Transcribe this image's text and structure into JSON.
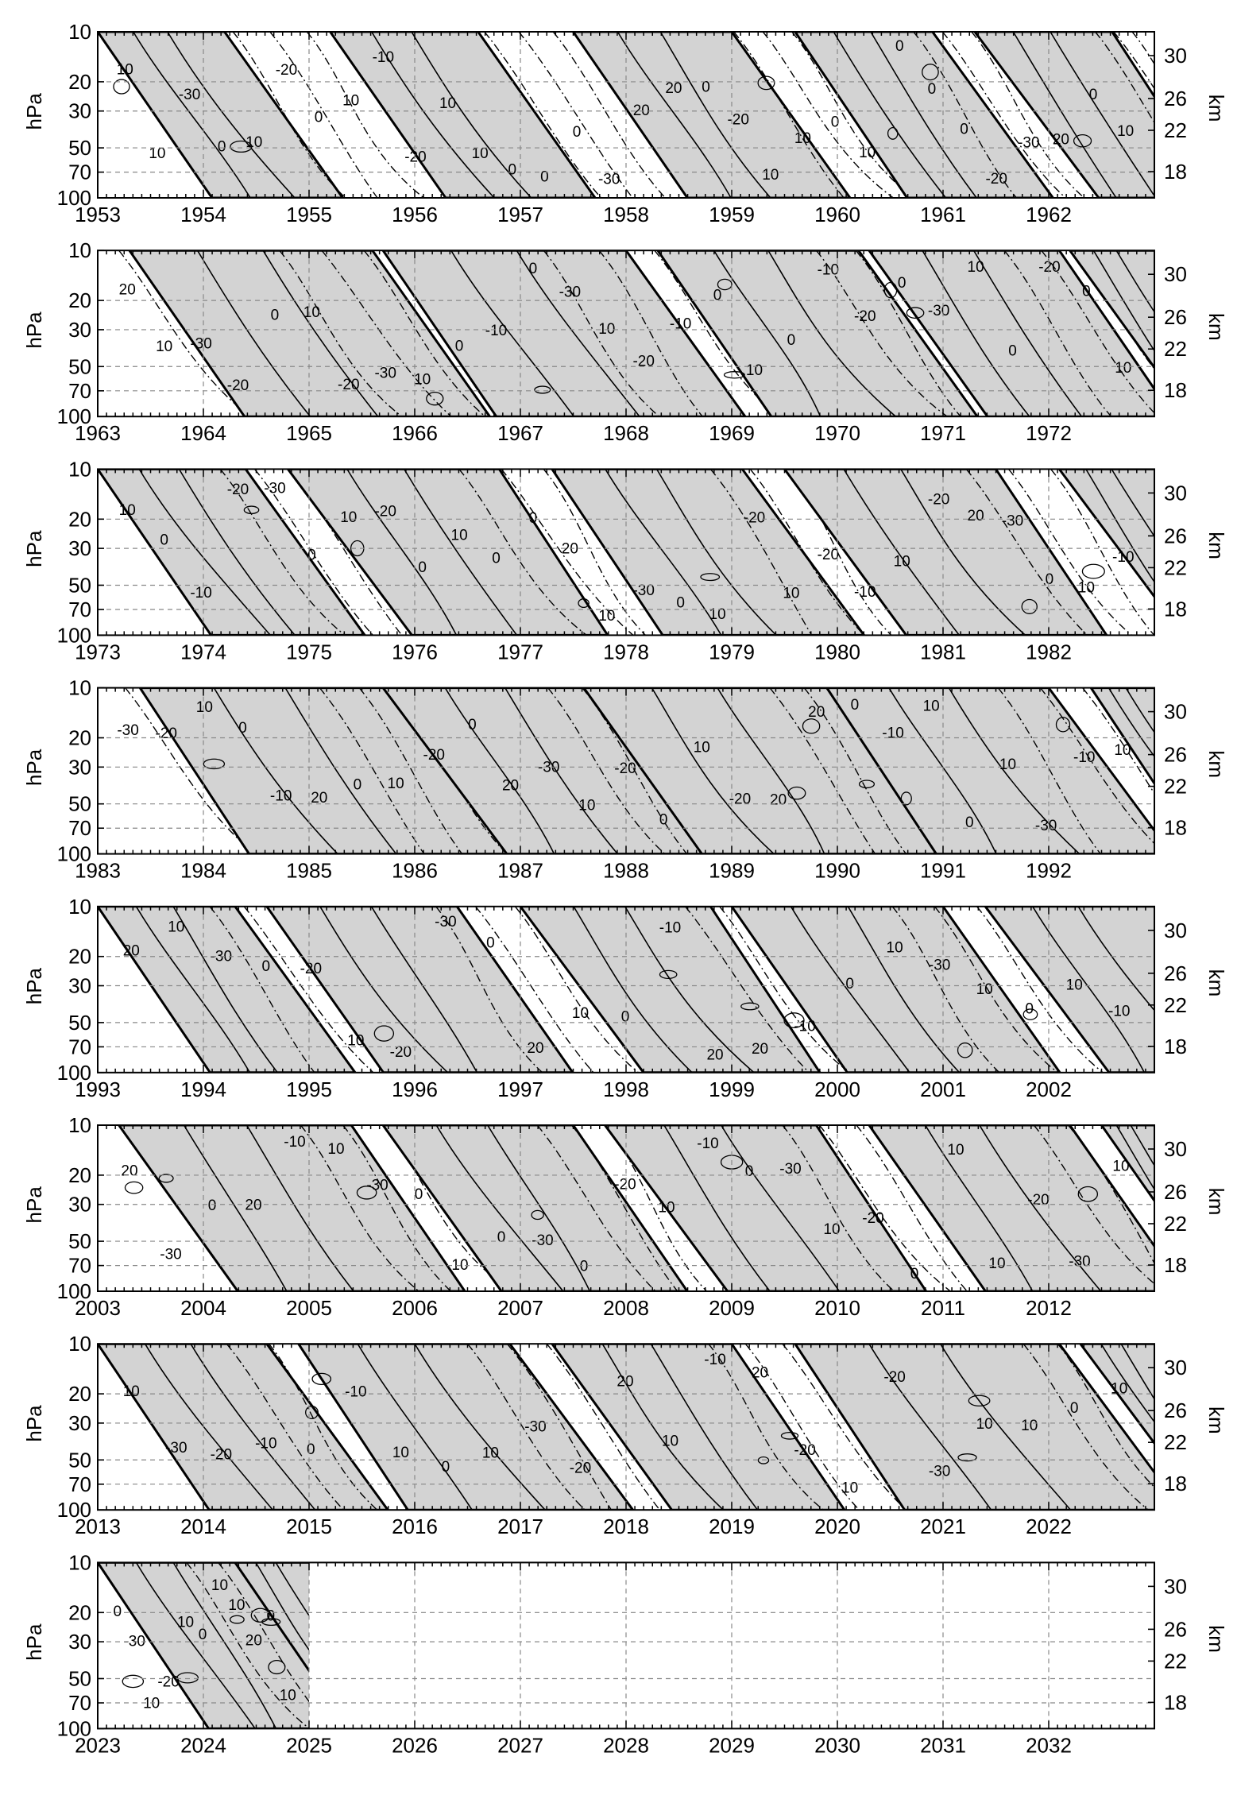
{
  "chart_data": {
    "type": "time-height contour",
    "left_axis": {
      "label": "hPa",
      "ticks": [
        "10",
        "20",
        "30",
        "50",
        "70",
        "100"
      ],
      "ticks_values": [
        10,
        20,
        30,
        50,
        70,
        100
      ],
      "scale": "log",
      "range": [
        10,
        100
      ]
    },
    "right_axis": {
      "label": "km",
      "ticks": [
        "30",
        "26",
        "22",
        "18"
      ]
    },
    "shading": "values >= 0 shaded light grey; negative contours dash-dotted; bold zero line",
    "contour_levels": [
      -30,
      -20,
      -10,
      0,
      10,
      20
    ],
    "panels": [
      {
        "years": [
          "1953",
          "1954",
          "1955",
          "1956",
          "1957",
          "1958",
          "1959",
          "1960",
          "1961",
          "1962"
        ],
        "contour_labels": [
          "10",
          "10",
          "-30",
          "0",
          "10",
          "-20",
          "0",
          "10",
          "-10",
          "-20",
          "10",
          "10",
          "0",
          "0",
          "0",
          "-30",
          "20",
          "20",
          "0",
          "-20",
          "10",
          "10",
          "0",
          "10",
          "0",
          "0",
          "0",
          "-20",
          "-30",
          "20",
          "0",
          "10"
        ],
        "bands": [
          {
            "t0": 1953.0,
            "t1": 1954.2,
            "sign": "pos"
          },
          {
            "t0": 1954.0,
            "t1": 1955.4,
            "sign": "neg"
          },
          {
            "t0": 1955.2,
            "t1": 1956.6,
            "sign": "pos"
          },
          {
            "t0": 1956.4,
            "t1": 1957.7,
            "sign": "neg"
          },
          {
            "t0": 1957.5,
            "t1": 1959.0,
            "sign": "pos"
          },
          {
            "t0": 1958.8,
            "t1": 1959.9,
            "sign": "neg"
          },
          {
            "t0": 1959.6,
            "t1": 1960.9,
            "sign": "pos"
          },
          {
            "t0": 1960.5,
            "t1": 1961.6,
            "sign": "neg"
          },
          {
            "t0": 1961.3,
            "t1": 1962.6,
            "sign": "pos"
          },
          {
            "t0": 1962.3,
            "t1": 1963.0,
            "sign": "neg"
          }
        ]
      },
      {
        "years": [
          "1963",
          "1964",
          "1965",
          "1966",
          "1967",
          "1968",
          "1969",
          "1970",
          "1971",
          "1972"
        ],
        "contour_labels": [
          "20",
          "10",
          "-30",
          "-20",
          "0",
          "10",
          "-20",
          "-30",
          "10",
          "0",
          "-10",
          "0",
          "-30",
          "10",
          "-20",
          "-10",
          "0",
          "10",
          "0",
          "-10",
          "-20",
          "0",
          "-30",
          "10",
          "0",
          "-20",
          "0",
          "10"
        ],
        "bands": [
          {
            "t0": 1963.0,
            "t1": 1964.0,
            "sign": "neg"
          },
          {
            "t0": 1963.3,
            "t1": 1965.6,
            "sign": "pos"
          },
          {
            "t0": 1964.4,
            "t1": 1966.0,
            "sign": "neg"
          },
          {
            "t0": 1965.7,
            "t1": 1968.0,
            "sign": "pos"
          },
          {
            "t0": 1966.8,
            "t1": 1968.9,
            "sign": "neg"
          },
          {
            "t0": 1968.3,
            "t1": 1970.2,
            "sign": "pos"
          },
          {
            "t0": 1969.5,
            "t1": 1971.0,
            "sign": "neg"
          },
          {
            "t0": 1970.3,
            "t1": 1972.1,
            "sign": "pos"
          },
          {
            "t0": 1971.3,
            "t1": 1972.7,
            "sign": "neg"
          },
          {
            "t0": 1972.2,
            "t1": 1973.0,
            "sign": "pos"
          }
        ]
      },
      {
        "years": [
          "1973",
          "1974",
          "1975",
          "1976",
          "1977",
          "1978",
          "1979",
          "1980",
          "1981",
          "1982"
        ],
        "contour_labels": [
          "10",
          "0",
          "-10",
          "-20",
          "-30",
          "0",
          "10",
          "-20",
          "0",
          "10",
          "0",
          "0",
          "20",
          "10",
          "-30",
          "0",
          "10",
          "-20",
          "10",
          "-20",
          "-10",
          "10",
          "-20",
          "20",
          "-30",
          "0",
          "10",
          "-10"
        ],
        "bands": [
          {
            "t0": 1973.0,
            "t1": 1974.4,
            "sign": "pos"
          },
          {
            "t0": 1973.9,
            "t1": 1975.2,
            "sign": "neg"
          },
          {
            "t0": 1974.8,
            "t1": 1976.8,
            "sign": "pos"
          },
          {
            "t0": 1976.1,
            "t1": 1977.7,
            "sign": "neg"
          },
          {
            "t0": 1977.3,
            "t1": 1979.1,
            "sign": "pos"
          },
          {
            "t0": 1978.5,
            "t1": 1980.0,
            "sign": "neg"
          },
          {
            "t0": 1979.5,
            "t1": 1981.5,
            "sign": "pos"
          },
          {
            "t0": 1980.9,
            "t1": 1982.5,
            "sign": "neg"
          },
          {
            "t0": 1982.1,
            "t1": 1983.0,
            "sign": "pos"
          }
        ]
      },
      {
        "years": [
          "1983",
          "1984",
          "1985",
          "1986",
          "1987",
          "1988",
          "1989",
          "1990",
          "1991",
          "1992"
        ],
        "contour_labels": [
          "-30",
          "-20",
          "10",
          "0",
          "-10",
          "20",
          "0",
          "10",
          "-20",
          "0",
          "20",
          "-30",
          "10",
          "-20",
          "0",
          "10",
          "-20",
          "20",
          "20",
          "0",
          "-10",
          "10",
          "0",
          "10",
          "-30",
          "-10",
          "10"
        ],
        "bands": [
          {
            "t0": 1983.0,
            "t1": 1984.3,
            "sign": "neg"
          },
          {
            "t0": 1983.4,
            "t1": 1985.9,
            "sign": "pos"
          },
          {
            "t0": 1984.8,
            "t1": 1986.3,
            "sign": "neg"
          },
          {
            "t0": 1985.7,
            "t1": 1987.8,
            "sign": "pos"
          },
          {
            "t0": 1987.0,
            "t1": 1988.3,
            "sign": "neg"
          },
          {
            "t0": 1987.6,
            "t1": 1989.9,
            "sign": "pos"
          },
          {
            "t0": 1989.1,
            "t1": 1990.4,
            "sign": "neg"
          },
          {
            "t0": 1989.9,
            "t1": 1992.0,
            "sign": "pos"
          },
          {
            "t0": 1991.2,
            "t1": 1992.8,
            "sign": "neg"
          },
          {
            "t0": 1992.4,
            "t1": 1993.0,
            "sign": "pos"
          }
        ]
      },
      {
        "years": [
          "1993",
          "1994",
          "1995",
          "1996",
          "1997",
          "1998",
          "1999",
          "2000",
          "2001",
          "2002"
        ],
        "contour_labels": [
          "20",
          "10",
          "-30",
          "0",
          "-20",
          "10",
          "-20",
          "-30",
          "0",
          "20",
          "10",
          "0",
          "-10",
          "20",
          "20",
          "-10",
          "0",
          "10",
          "-30",
          "10",
          "0",
          "10",
          "-10"
        ],
        "bands": [
          {
            "t0": 1993.0,
            "t1": 1994.3,
            "sign": "pos"
          },
          {
            "t0": 1993.8,
            "t1": 1995.1,
            "sign": "neg"
          },
          {
            "t0": 1994.6,
            "t1": 1996.4,
            "sign": "pos"
          },
          {
            "t0": 1995.9,
            "t1": 1997.4,
            "sign": "neg"
          },
          {
            "t0": 1997.0,
            "t1": 1998.8,
            "sign": "pos"
          },
          {
            "t0": 1998.3,
            "t1": 1999.6,
            "sign": "neg"
          },
          {
            "t0": 1999.0,
            "t1": 2001.0,
            "sign": "pos"
          },
          {
            "t0": 2000.2,
            "t1": 2001.8,
            "sign": "neg"
          },
          {
            "t0": 2001.4,
            "t1": 2003.0,
            "sign": "pos"
          }
        ]
      },
      {
        "years": [
          "2003",
          "2004",
          "2005",
          "2006",
          "2007",
          "2008",
          "2009",
          "2010",
          "2011",
          "2012"
        ],
        "contour_labels": [
          "20",
          "-30",
          "0",
          "20",
          "-10",
          "10",
          "-30",
          "0",
          "10",
          "0",
          "-30",
          "0",
          "-20",
          "10",
          "-10",
          "0",
          "-30",
          "10",
          "-20",
          "0",
          "10",
          "10",
          "-20",
          "-30",
          "10"
        ],
        "bands": [
          {
            "t0": 2003.0,
            "t1": 2004.1,
            "sign": "neg"
          },
          {
            "t0": 2003.2,
            "t1": 2005.4,
            "sign": "pos"
          },
          {
            "t0": 2004.6,
            "t1": 2006.2,
            "sign": "neg"
          },
          {
            "t0": 2005.7,
            "t1": 2007.5,
            "sign": "pos"
          },
          {
            "t0": 2006.9,
            "t1": 2008.2,
            "sign": "neg"
          },
          {
            "t0": 2007.8,
            "t1": 2009.8,
            "sign": "pos"
          },
          {
            "t0": 2009.2,
            "t1": 2010.6,
            "sign": "neg"
          },
          {
            "t0": 2010.3,
            "t1": 2012.2,
            "sign": "pos"
          },
          {
            "t0": 2011.6,
            "t1": 2012.9,
            "sign": "neg"
          },
          {
            "t0": 2012.5,
            "t1": 2013.0,
            "sign": "pos"
          }
        ]
      },
      {
        "years": [
          "2013",
          "2014",
          "2015",
          "2016",
          "2017",
          "2018",
          "2019",
          "2020",
          "2021",
          "2022"
        ],
        "contour_labels": [
          "10",
          "-30",
          "-20",
          "-10",
          "0",
          "-10",
          "10",
          "0",
          "10",
          "-30",
          "-20",
          "20",
          "10",
          "-10",
          "20",
          "-20",
          "10",
          "-20",
          "-30",
          "10",
          "10",
          "0",
          "10"
        ],
        "bands": [
          {
            "t0": 2013.0,
            "t1": 2014.6,
            "sign": "pos"
          },
          {
            "t0": 2013.9,
            "t1": 2015.5,
            "sign": "neg"
          },
          {
            "t0": 2014.9,
            "t1": 2016.9,
            "sign": "pos"
          },
          {
            "t0": 2016.2,
            "t1": 2017.7,
            "sign": "neg"
          },
          {
            "t0": 2017.3,
            "t1": 2019.0,
            "sign": "pos"
          },
          {
            "t0": 2018.5,
            "t1": 2019.9,
            "sign": "neg"
          },
          {
            "t0": 2019.6,
            "t1": 2022.1,
            "sign": "pos"
          },
          {
            "t0": 2021.5,
            "t1": 2022.8,
            "sign": "neg"
          },
          {
            "t0": 2022.3,
            "t1": 2023.0,
            "sign": "pos"
          }
        ]
      },
      {
        "years": [
          "2023",
          "2024",
          "2025",
          "2026",
          "2027",
          "2028",
          "2029",
          "2030",
          "2031",
          "2032"
        ],
        "contour_labels": [
          "0",
          "-30",
          "10",
          "-20",
          "10",
          "0",
          "10",
          "10",
          "20",
          "0",
          "10"
        ],
        "data_end": 2025.0,
        "bands": [
          {
            "t0": 2023.0,
            "t1": 2024.3,
            "sign": "pos"
          },
          {
            "t0": 2023.6,
            "t1": 2024.8,
            "sign": "neg"
          },
          {
            "t0": 2024.3,
            "t1": 2025.0,
            "sign": "pos"
          }
        ]
      }
    ]
  }
}
